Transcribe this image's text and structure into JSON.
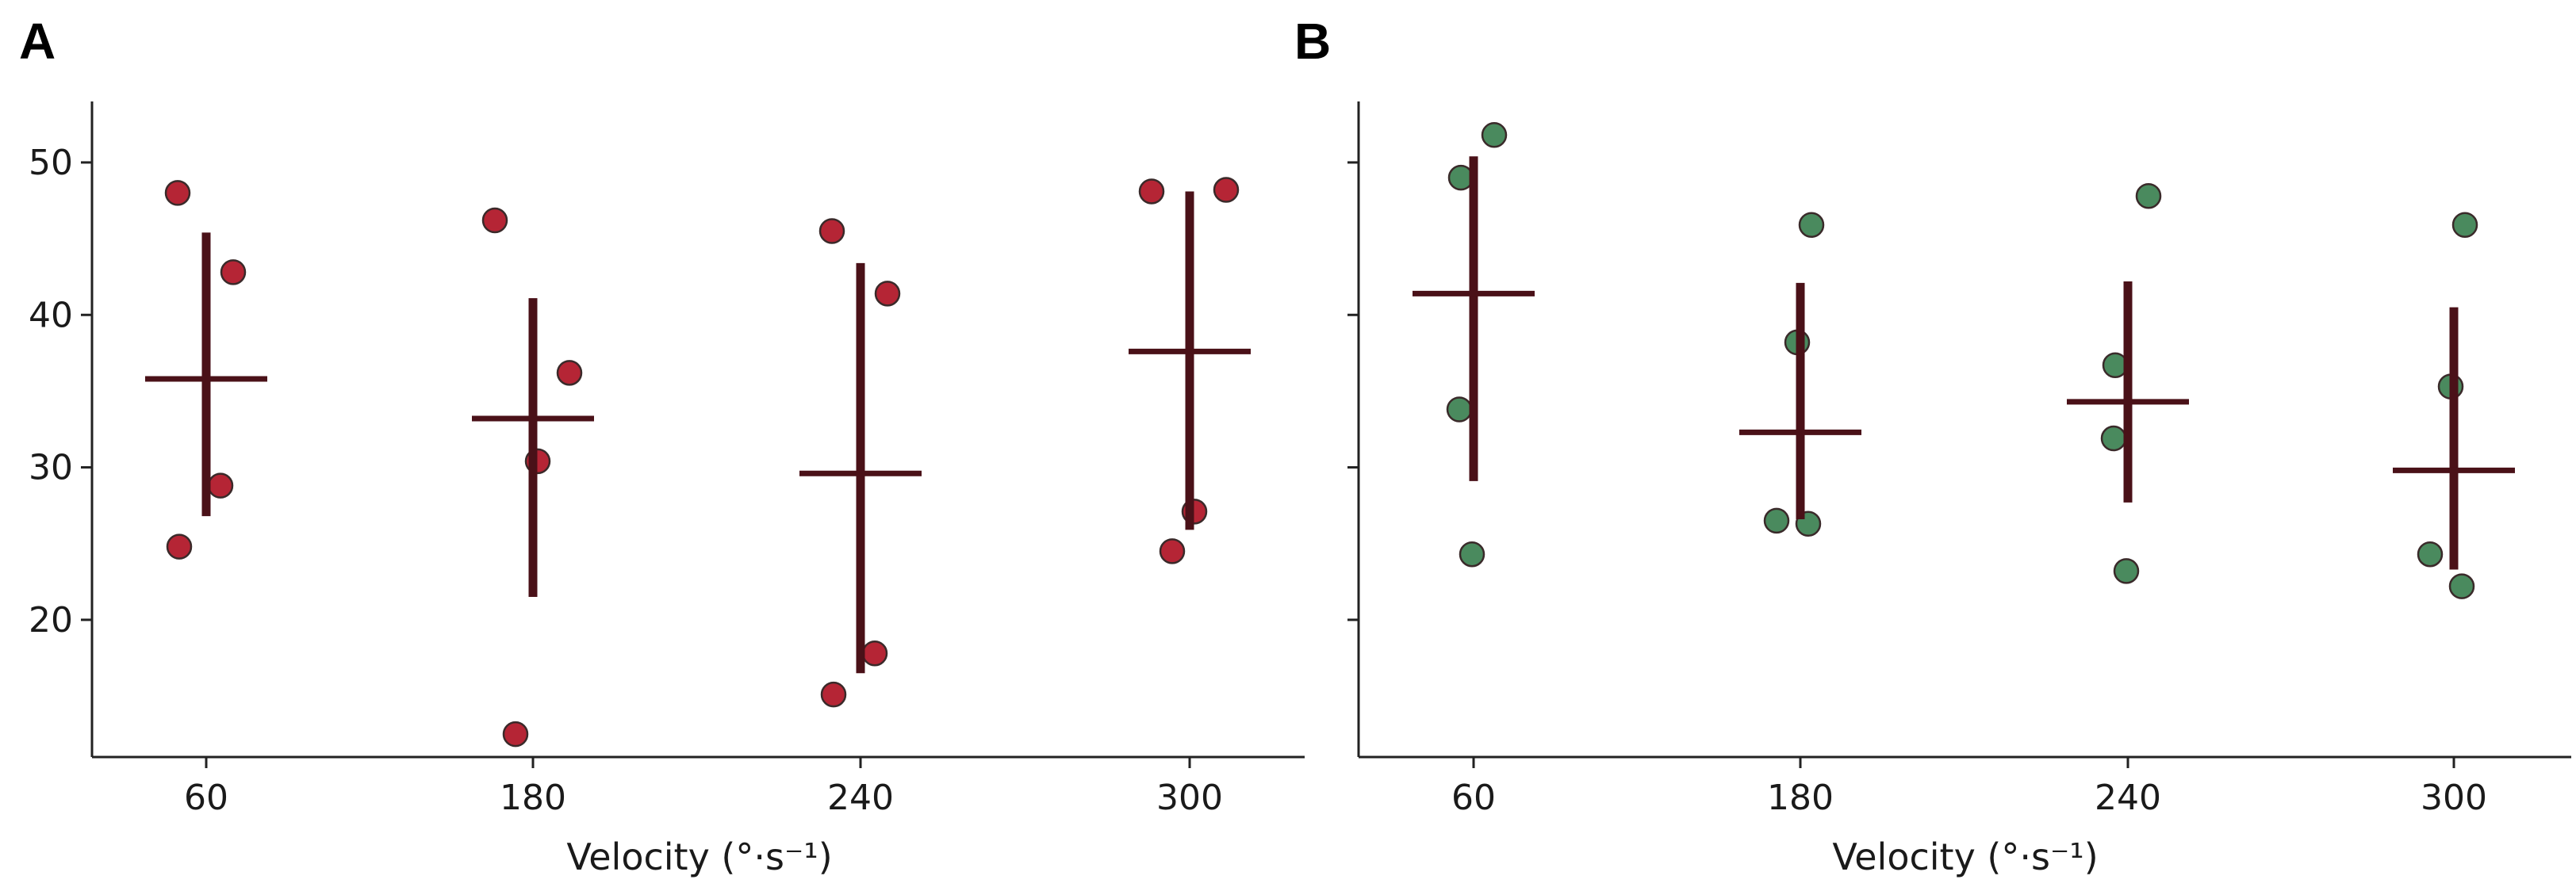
{
  "panels": [
    {
      "letter": "A",
      "xlabel": "Velocity (°·s⁻¹)",
      "marker_color": "#b52535"
    },
    {
      "letter": "B",
      "xlabel": "Velocity (°·s⁻¹)",
      "marker_color": "#4a8a5e"
    }
  ],
  "colors": {
    "summary_bar": "#4a1118",
    "marker_edge": "#3a2a2a",
    "axis": "#222222"
  },
  "chart_data": [
    {
      "type": "scatter",
      "title": "",
      "xlabel": "Velocity (°·s⁻¹)",
      "ylabel": "",
      "categories": [
        "60",
        "180",
        "240",
        "300"
      ],
      "yticks": [
        20,
        30,
        40,
        50
      ],
      "ylim": [
        11,
        54
      ],
      "grid": false,
      "legend": "none",
      "series": [
        {
          "category": "60",
          "points": [
            48.0,
            42.8,
            28.8,
            24.8
          ],
          "mean": 35.8,
          "low": 26.8,
          "high": 45.4
        },
        {
          "category": "180",
          "points": [
            46.2,
            36.2,
            30.4,
            12.5
          ],
          "mean": 33.2,
          "low": 21.5,
          "high": 41.1
        },
        {
          "category": "240",
          "points": [
            45.5,
            41.4,
            17.8,
            15.1
          ],
          "mean": 29.6,
          "low": 16.5,
          "high": 43.4
        },
        {
          "category": "300",
          "points": [
            48.1,
            48.2,
            27.1,
            24.5
          ],
          "mean": 37.6,
          "low": 25.9,
          "high": 48.1
        }
      ]
    },
    {
      "type": "scatter",
      "title": "",
      "xlabel": "Velocity (°·s⁻¹)",
      "ylabel": "",
      "categories": [
        "60",
        "180",
        "240",
        "300"
      ],
      "yticks": [
        20,
        30,
        40,
        50
      ],
      "ylim": [
        11,
        54
      ],
      "grid": false,
      "legend": "none",
      "series": [
        {
          "category": "60",
          "points": [
            51.8,
            49.0,
            33.8,
            24.3
          ],
          "mean": 41.4,
          "low": 29.1,
          "high": 50.4
        },
        {
          "category": "180",
          "points": [
            45.9,
            38.2,
            26.5,
            26.3
          ],
          "mean": 32.3,
          "low": 26.6,
          "high": 42.1
        },
        {
          "category": "240",
          "points": [
            47.8,
            36.7,
            31.9,
            23.2
          ],
          "mean": 34.3,
          "low": 27.7,
          "high": 42.2
        },
        {
          "category": "300",
          "points": [
            45.9,
            35.3,
            24.3,
            22.2
          ],
          "mean": 29.8,
          "low": 23.3,
          "high": 40.5
        }
      ]
    }
  ]
}
